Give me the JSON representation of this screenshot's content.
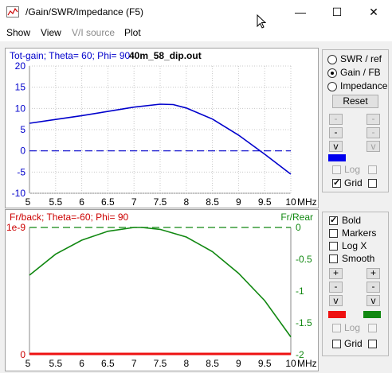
{
  "window": {
    "title": "/Gain/SWR/Impedance (F5)",
    "minimize_glyph": "—",
    "maximize_glyph": "☐",
    "close_glyph": "✕"
  },
  "menu": [
    "Show",
    "View",
    "V/I source",
    "Plot"
  ],
  "colors": {
    "gain_line": "#0000cc",
    "frback_line": "#ee1111",
    "frrear_line": "#118811",
    "zero_ref_blue": "#0000cc"
  },
  "top_chart": {
    "header_left": "Tot-gain; Theta= 60; Phi= 90",
    "header_file": "40m_58_dip.out",
    "xlabel": "MHz"
  },
  "bottom_chart": {
    "header_left": "Fr/back; Theta=-60; Phi= 90",
    "header_right": "Fr/Rear",
    "xlabel": "MHz"
  },
  "panel_top": {
    "radios": [
      {
        "label": "SWR / ref",
        "checked": false
      },
      {
        "label": "Gain / FB",
        "checked": true
      },
      {
        "label": "Impedance",
        "checked": false
      }
    ],
    "reset_label": "Reset",
    "left_buttons": [
      "-",
      "-",
      "v"
    ],
    "right_buttons": [
      "-",
      "-",
      "v"
    ],
    "log_label": "Log",
    "grid_label": "Grid",
    "log_left_checked": false,
    "grid_left_checked": true,
    "swatch_color": "#0000ee"
  },
  "panel_bottom": {
    "checks": [
      {
        "label": "Bold",
        "checked": true
      },
      {
        "label": "Markers",
        "checked": false
      },
      {
        "label": "Log X",
        "checked": false
      },
      {
        "label": "Smooth",
        "checked": false
      }
    ],
    "left_buttons": [
      "+",
      "-",
      "v"
    ],
    "right_buttons": [
      "+",
      "-",
      "v"
    ],
    "log_label": "Log",
    "grid_label": "Grid",
    "grid_left_checked": false,
    "swatch_left_color": "#ee1111",
    "swatch_right_color": "#118811"
  },
  "chart_data": [
    {
      "type": "line",
      "xlabel": "MHz",
      "ylabel": "",
      "xlim": [
        5,
        10
      ],
      "ylim": [
        -10,
        20
      ],
      "xticks": [
        "5.5",
        "6",
        "6.5",
        "7",
        "7.5",
        "8",
        "8.5",
        "9",
        "9.5",
        "10"
      ],
      "yticks": [
        "20",
        "15",
        "10",
        "5",
        "0",
        "-5",
        "-10"
      ],
      "series": [
        {
          "x": [
            5.0,
            5.5,
            6.0,
            6.5,
            7.0,
            7.5,
            7.75,
            8.0,
            8.5,
            9.0,
            9.5,
            10.0
          ],
          "y": [
            6.5,
            7.4,
            8.3,
            9.3,
            10.3,
            11.0,
            10.9,
            10.1,
            7.5,
            3.7,
            -0.8,
            -5.5
          ]
        }
      ],
      "reference_line": 0
    },
    {
      "type": "line",
      "xlabel": "MHz",
      "xlim": [
        5,
        10
      ],
      "left_ylim": [
        0,
        "1e-9"
      ],
      "left_yticks": [
        "1e-9",
        "0"
      ],
      "right_ylim": [
        -2,
        0
      ],
      "right_yticks": [
        "0",
        "-0.5",
        "-1",
        "-1.5",
        "-2"
      ],
      "xticks": [
        "5.5",
        "6",
        "6.5",
        "7",
        "7.5",
        "8",
        "8.5",
        "9",
        "9.5",
        "10"
      ],
      "series": [
        {
          "name": "Fr/back",
          "axis": "left",
          "x": [
            5.0,
            10.0
          ],
          "y": [
            0,
            0
          ]
        },
        {
          "name": "Fr/Rear",
          "axis": "right",
          "x": [
            5.0,
            5.5,
            6.0,
            6.5,
            7.0,
            7.15,
            7.5,
            8.0,
            8.5,
            9.0,
            9.5,
            10.0
          ],
          "y": [
            -0.75,
            -0.42,
            -0.2,
            -0.06,
            0.0,
            0.0,
            -0.03,
            -0.15,
            -0.38,
            -0.72,
            -1.15,
            -1.72
          ]
        }
      ],
      "reference_line_right": 0
    }
  ]
}
